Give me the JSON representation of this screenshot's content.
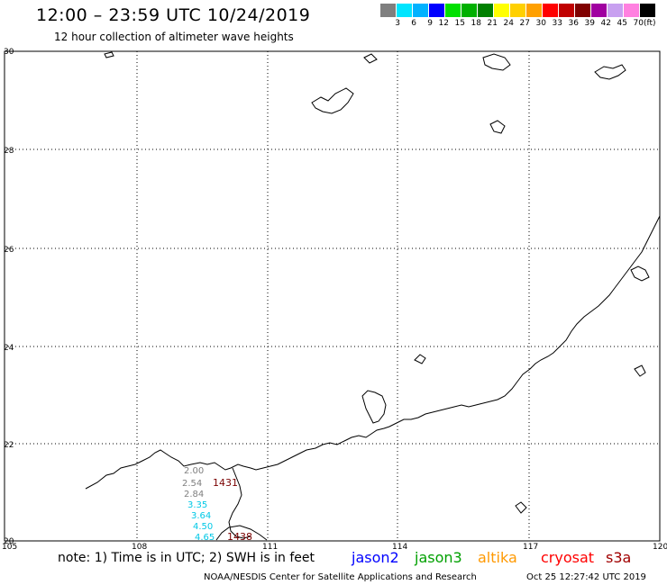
{
  "header": {
    "title": "12:00 – 23:59 UTC 10/24/2019",
    "subtitle": "12 hour collection of altimeter wave heights"
  },
  "color_scale": {
    "unit": "(ft)",
    "labels": [
      "3",
      "6",
      "9",
      "12",
      "15",
      "18",
      "21",
      "24",
      "27",
      "30",
      "33",
      "36",
      "39",
      "42",
      "45",
      "70"
    ],
    "colors": [
      "#7f7f7f",
      "#00e5ff",
      "#00b2ff",
      "#0000ff",
      "#00e000",
      "#00b000",
      "#008000",
      "#ffff00",
      "#ffd000",
      "#ffa000",
      "#ff0000",
      "#c00000",
      "#800000",
      "#a000a0",
      "#c8a0f0",
      "#ff80e0",
      "#000000"
    ]
  },
  "map": {
    "lat_labels": [
      "30",
      "28",
      "26",
      "24",
      "22",
      "20"
    ],
    "lon_labels": [
      "105",
      "108",
      "111",
      "114",
      "117",
      "120"
    ],
    "observations": [
      {
        "value": "2.00",
        "color": "#7f7f7f"
      },
      {
        "value": "2.54",
        "color": "#7f7f7f"
      },
      {
        "value": "2.84",
        "color": "#7f7f7f"
      },
      {
        "value": "3.35",
        "color": "#00c8e6"
      },
      {
        "value": "3.64",
        "color": "#00c8e6"
      },
      {
        "value": "4.50",
        "color": "#00c8e6"
      },
      {
        "value": "4.65",
        "color": "#00c8e6"
      }
    ],
    "track_times": [
      "1431",
      "1438"
    ]
  },
  "note": "note: 1) Time is in UTC; 2) SWH is in feet",
  "legend": {
    "satellites": [
      {
        "name": "jason2",
        "color": "#0000ff"
      },
      {
        "name": "jason3",
        "color": "#00a000"
      },
      {
        "name": "altika",
        "color": "#ff9900"
      },
      {
        "name": "cryosat",
        "color": "#ff0000"
      },
      {
        "name": "s3a",
        "color": "#a00000"
      }
    ]
  },
  "footer": {
    "credit": "NOAA/NESDIS Center for Satellite Applications and Research",
    "timestamp": "Oct 25 12:27:42 UTC 2019"
  }
}
